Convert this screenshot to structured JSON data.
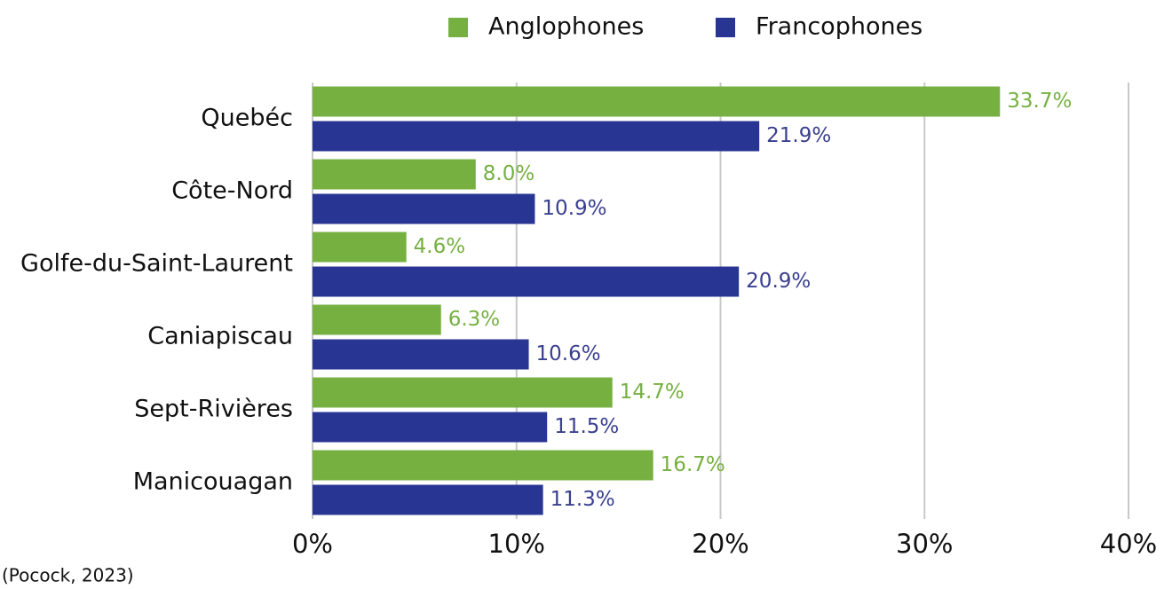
{
  "chart_data": {
    "type": "bar",
    "orientation": "horizontal",
    "categories": [
      "Quebéc",
      "Côte-Nord",
      "Golfe-du-Saint-Laurent",
      "Caniapiscau",
      "Sept-Rivières",
      "Manicouagan"
    ],
    "series": [
      {
        "name": "Anglophones",
        "color": "#76b041",
        "values": [
          33.7,
          8.0,
          4.6,
          6.3,
          14.7,
          16.7
        ],
        "value_labels": [
          "33.7%",
          "8.0%",
          "4.6%",
          "6.3%",
          "14.7%",
          "16.7%"
        ]
      },
      {
        "name": "Francophones",
        "color": "#283593",
        "values": [
          21.9,
          10.9,
          20.9,
          10.6,
          11.5,
          11.3
        ],
        "value_labels": [
          "21.9%",
          "10.9%",
          "20.9%",
          "10.6%",
          "11.5%",
          "11.3%"
        ]
      }
    ],
    "xlim": [
      0,
      40
    ],
    "xticks": [
      {
        "value": 0,
        "label": "0%"
      },
      {
        "value": 10,
        "label": "10%"
      },
      {
        "value": 20,
        "label": "20%"
      },
      {
        "value": 30,
        "label": "30%"
      },
      {
        "value": 40,
        "label": "40%"
      }
    ],
    "grid": true,
    "legend": "top",
    "source": "(Pocock, 2023)"
  }
}
